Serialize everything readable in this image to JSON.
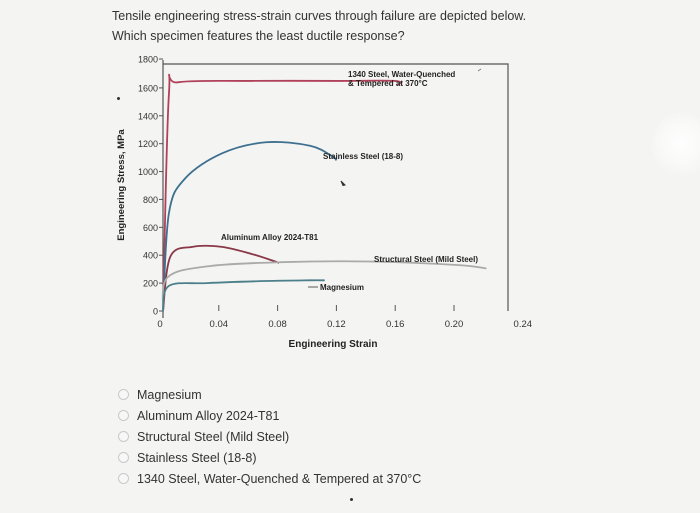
{
  "question": {
    "line1": "Tensile engineering stress-strain curves through failure are depicted below.",
    "line2": "Which specimen features the least ductile response?"
  },
  "options": [
    {
      "label": "Magnesium"
    },
    {
      "label": "Aluminum Alloy 2024-T81"
    },
    {
      "label": "Structural Steel (Mild Steel)"
    },
    {
      "label": "Stainless Steel (18-8)"
    },
    {
      "label": "1340 Steel, Water-Quenched & Tempered at 370°C"
    }
  ],
  "chart_data": {
    "type": "line",
    "xlabel": "Engineering Strain",
    "ylabel": "Engineering Stress, MPa",
    "xlim": [
      0,
      0.24
    ],
    "ylim": [
      0,
      1800
    ],
    "xticks": [
      "0",
      "0.04",
      "0.08",
      "0.12",
      "0.16",
      "0.20",
      "0.24"
    ],
    "xtick_values": [
      0,
      0.04,
      0.08,
      0.12,
      0.16,
      0.2,
      0.24
    ],
    "yticks": [
      "0",
      "200",
      "400",
      "600",
      "800",
      "1000",
      "1200",
      "1400",
      "1600",
      "1800"
    ],
    "ytick_values": [
      0,
      200,
      400,
      600,
      800,
      1000,
      1200,
      1400,
      1600,
      1800
    ],
    "series": [
      {
        "name": "1340 Steel, Water-Quenched & Tempered at 370°C",
        "label_lines": [
          "1340 Steel, Water-Quenched",
          "& Tempered at 370°C"
        ],
        "color": "#b0415a",
        "points": [
          [
            0,
            0
          ],
          [
            0.004,
            1550
          ],
          [
            0.01,
            1640
          ],
          [
            0.06,
            1650
          ],
          [
            0.12,
            1650
          ],
          [
            0.158,
            1650
          ],
          [
            0.16,
            1620
          ]
        ]
      },
      {
        "name": "Stainless Steel (18-8)",
        "label_lines": [
          "Stainless Steel (18-8)"
        ],
        "color": "#3e7090",
        "points": [
          [
            0,
            0
          ],
          [
            0.004,
            700
          ],
          [
            0.015,
            950
          ],
          [
            0.04,
            1130
          ],
          [
            0.07,
            1210
          ],
          [
            0.1,
            1185
          ],
          [
            0.115,
            1110
          ],
          [
            0.118,
            1080
          ]
        ]
      },
      {
        "name": "Aluminum Alloy 2024-T81",
        "label_lines": [
          "Aluminum Alloy 2024-T81"
        ],
        "color": "#8a3848",
        "points": [
          [
            0,
            0
          ],
          [
            0.005,
            390
          ],
          [
            0.02,
            460
          ],
          [
            0.04,
            460
          ],
          [
            0.06,
            410
          ],
          [
            0.075,
            360
          ],
          [
            0.079,
            345
          ]
        ]
      },
      {
        "name": "Structural Steel (Mild Steel)",
        "label_lines": [
          "Structural Steel (Mild Steel)"
        ],
        "color": "#aaaaaa",
        "points": [
          [
            0,
            0
          ],
          [
            0.003,
            240
          ],
          [
            0.03,
            320
          ],
          [
            0.08,
            350
          ],
          [
            0.14,
            355
          ],
          [
            0.2,
            330
          ],
          [
            0.22,
            305
          ]
        ]
      },
      {
        "name": "Magnesium",
        "label_lines": [
          "Magnesium"
        ],
        "color": "#4d7f8a",
        "points": [
          [
            0,
            0
          ],
          [
            0.004,
            180
          ],
          [
            0.03,
            200
          ],
          [
            0.07,
            215
          ],
          [
            0.1,
            220
          ],
          [
            0.11,
            220
          ]
        ]
      }
    ],
    "annotation_arrow_color": "#333333"
  }
}
